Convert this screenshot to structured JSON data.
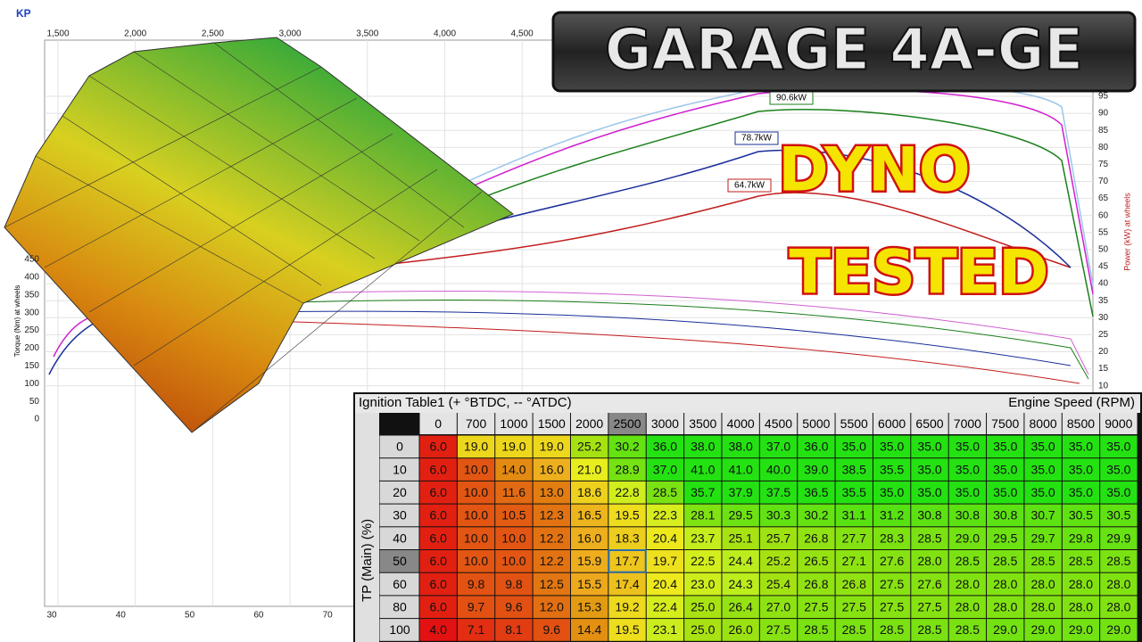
{
  "dyno": {
    "corner_label": "KP",
    "top_ticks": [
      "1,500",
      "2,000",
      "2,500",
      "3,000",
      "3,500",
      "4,000",
      "4,500"
    ],
    "bottom_ticks": [
      "30",
      "40",
      "50",
      "60",
      "70"
    ],
    "power_ticks": [
      "95",
      "90",
      "85",
      "80",
      "75",
      "70",
      "65",
      "60",
      "55",
      "50",
      "45",
      "40",
      "35",
      "30",
      "25",
      "20",
      "15",
      "10"
    ],
    "torque_ticks": [
      "450",
      "400",
      "350",
      "300",
      "250",
      "200",
      "150",
      "100",
      "50",
      "0"
    ],
    "torque_axis": "Torque (Nm) at wheels",
    "power_axis": "Power (kW) at wheels",
    "peak_labels": [
      "90.6kW",
      "78.7kW",
      "64.7kW"
    ]
  },
  "badge": "GARAGE 4A-GE",
  "headline": [
    "DYNO",
    "TESTED"
  ],
  "table": {
    "title": "Ignition Table1 (+ °BTDC, -- °ATDC)",
    "x_axis": "Engine Speed (RPM)",
    "y_axis": "TP (Main) (%)",
    "columns": [
      "0",
      "700",
      "1000",
      "1500",
      "2000",
      "2500",
      "3000",
      "3500",
      "4000",
      "4500",
      "5000",
      "5500",
      "6000",
      "6500",
      "7000",
      "7500",
      "8000",
      "8500",
      "9000"
    ],
    "rows": [
      {
        "label": "0",
        "cells": [
          "6.0",
          "19.0",
          "19.0",
          "19.0",
          "25.2",
          "30.2",
          "36.0",
          "38.0",
          "38.0",
          "37.0",
          "36.0",
          "35.0",
          "35.0",
          "35.0",
          "35.0",
          "35.0",
          "35.0",
          "35.0",
          "35.0"
        ]
      },
      {
        "label": "10",
        "cells": [
          "6.0",
          "10.0",
          "14.0",
          "16.0",
          "21.0",
          "28.9",
          "37.0",
          "41.0",
          "41.0",
          "40.0",
          "39.0",
          "38.5",
          "35.5",
          "35.0",
          "35.0",
          "35.0",
          "35.0",
          "35.0",
          "35.0"
        ]
      },
      {
        "label": "20",
        "cells": [
          "6.0",
          "10.0",
          "11.6",
          "13.0",
          "18.6",
          "22.8",
          "28.5",
          "35.7",
          "37.9",
          "37.5",
          "36.5",
          "35.5",
          "35.0",
          "35.0",
          "35.0",
          "35.0",
          "35.0",
          "35.0",
          "35.0"
        ]
      },
      {
        "label": "30",
        "cells": [
          "6.0",
          "10.0",
          "10.5",
          "12.3",
          "16.5",
          "19.5",
          "22.3",
          "28.1",
          "29.5",
          "30.3",
          "30.2",
          "31.1",
          "31.2",
          "30.8",
          "30.8",
          "30.8",
          "30.7",
          "30.5",
          "30.5"
        ]
      },
      {
        "label": "40",
        "cells": [
          "6.0",
          "10.0",
          "10.0",
          "12.2",
          "16.0",
          "18.3",
          "20.4",
          "23.7",
          "25.1",
          "25.7",
          "26.8",
          "27.7",
          "28.3",
          "28.5",
          "29.0",
          "29.5",
          "29.7",
          "29.8",
          "29.9"
        ]
      },
      {
        "label": "50",
        "cells": [
          "6.0",
          "10.0",
          "10.0",
          "12.2",
          "15.9",
          "17.7",
          "19.7",
          "22.5",
          "24.4",
          "25.2",
          "26.5",
          "27.1",
          "27.6",
          "28.0",
          "28.5",
          "28.5",
          "28.5",
          "28.5",
          "28.5"
        ]
      },
      {
        "label": "60",
        "cells": [
          "6.0",
          "9.8",
          "9.8",
          "12.5",
          "15.5",
          "17.4",
          "20.4",
          "23.0",
          "24.3",
          "25.4",
          "26.8",
          "26.8",
          "27.5",
          "27.6",
          "28.0",
          "28.0",
          "28.0",
          "28.0",
          "28.0"
        ]
      },
      {
        "label": "80",
        "cells": [
          "6.0",
          "9.7",
          "9.6",
          "12.0",
          "15.3",
          "19.2",
          "22.4",
          "25.0",
          "26.4",
          "27.0",
          "27.5",
          "27.5",
          "27.5",
          "27.5",
          "28.0",
          "28.0",
          "28.0",
          "28.0",
          "28.0"
        ]
      },
      {
        "label": "100",
        "cells": [
          "4.0",
          "7.1",
          "8.1",
          "9.6",
          "14.4",
          "19.5",
          "23.1",
          "25.0",
          "26.0",
          "27.5",
          "28.5",
          "28.5",
          "28.5",
          "28.5",
          "28.5",
          "29.0",
          "29.0",
          "29.0",
          "29.0"
        ]
      }
    ]
  }
}
